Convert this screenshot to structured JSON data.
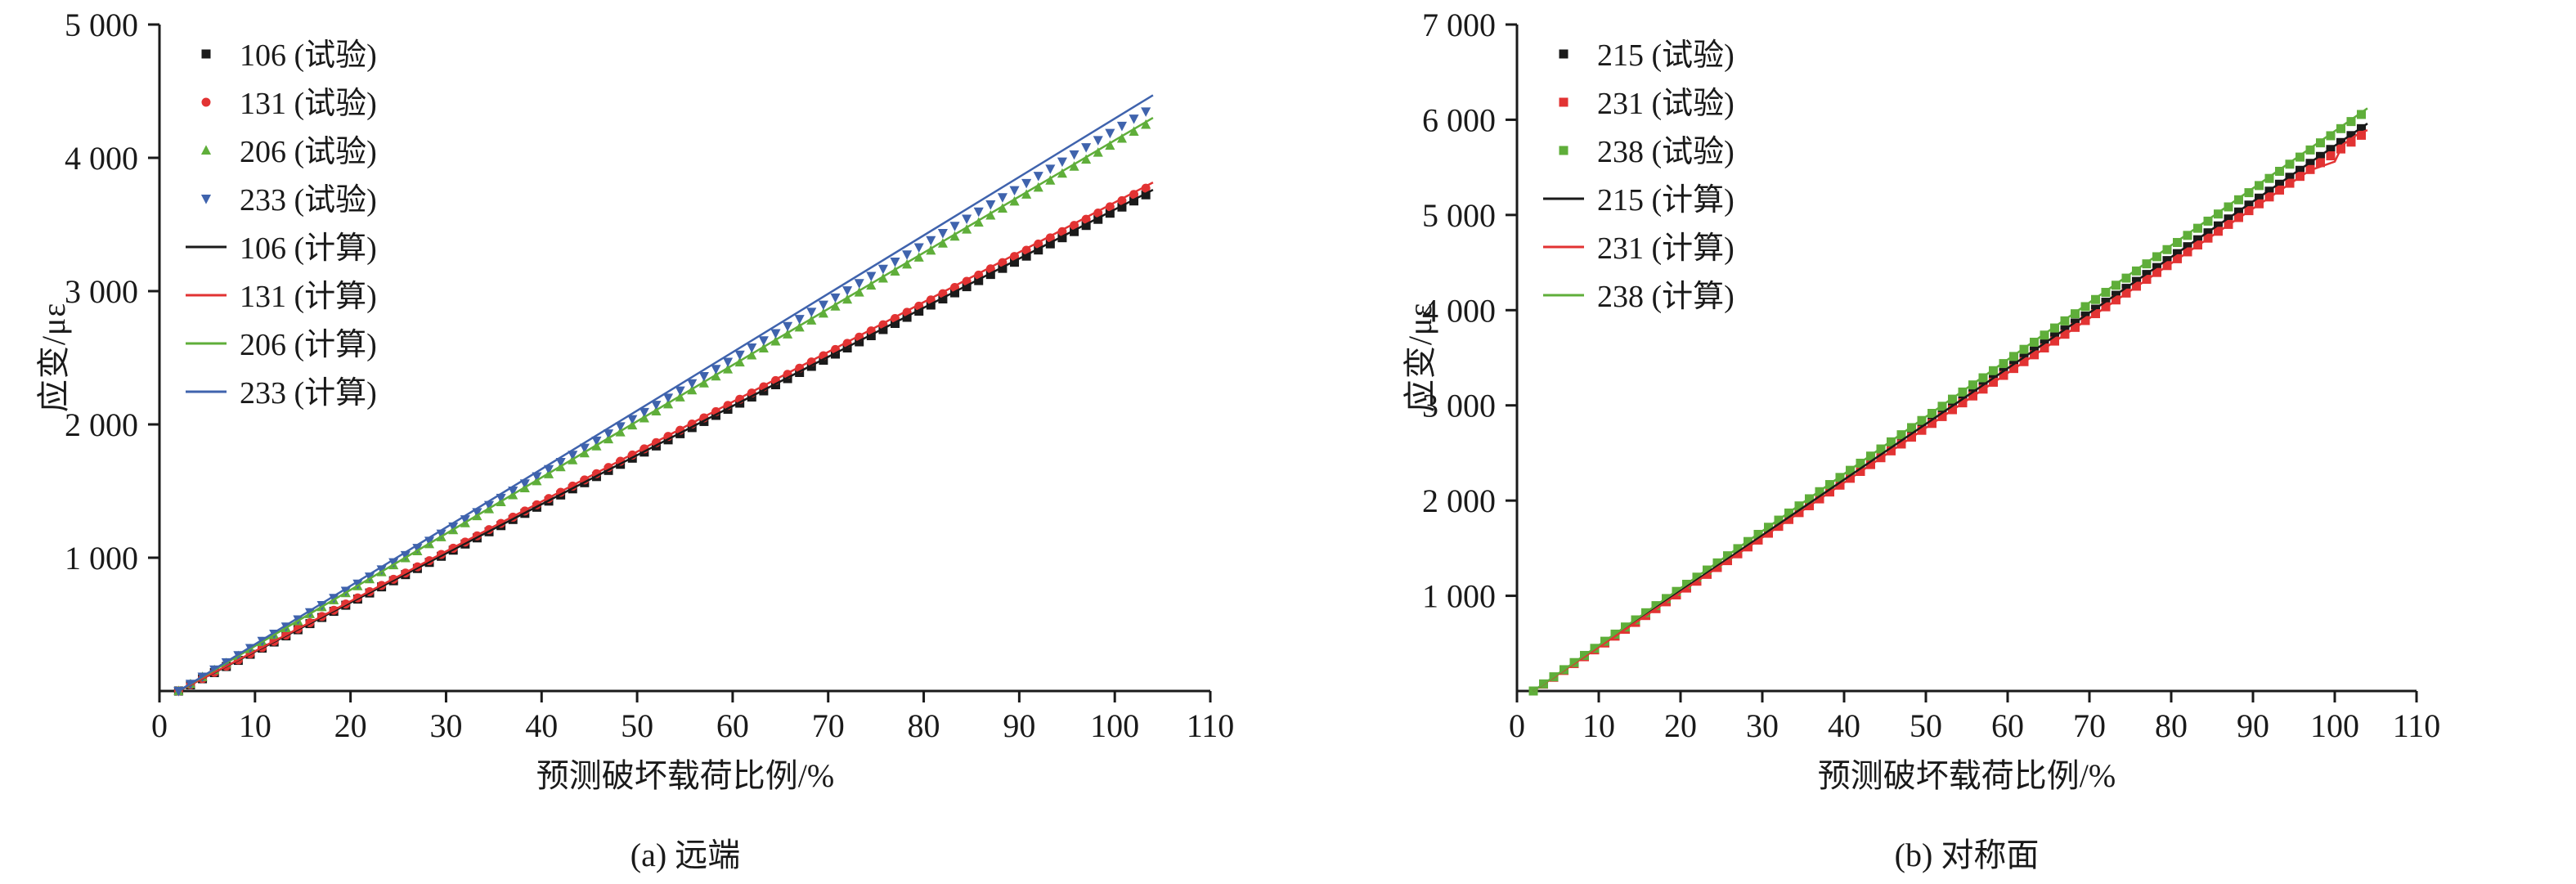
{
  "colors": {
    "black": "#1a1a1a",
    "red": "#e23333",
    "green": "#5fae3a",
    "blue": "#3f63ad",
    "background": "#ffffff"
  },
  "chart_data": [
    {
      "id": "a",
      "type": "scatter",
      "caption": "(a) 远端",
      "xlabel": "预测破坏载荷比例/%",
      "ylabel": "应变/με",
      "xlim": [
        0,
        110
      ],
      "ylim": [
        0,
        5000
      ],
      "xticks": [
        0,
        10,
        20,
        30,
        40,
        50,
        60,
        70,
        80,
        90,
        100,
        110
      ],
      "yticks": [
        1000,
        2000,
        3000,
        4000,
        5000
      ],
      "grid": false,
      "legend_position": "top-left",
      "series": [
        {
          "name": "106 (试验)",
          "kind": "scatter",
          "marker": "square",
          "color": "#1a1a1a",
          "x": [
            2,
            10,
            20,
            30,
            40,
            50,
            60,
            70,
            80,
            90,
            100,
            104
          ],
          "y": [
            0,
            294,
            662,
            1029,
            1397,
            1765,
            2132,
            2500,
            2868,
            3235,
            3603,
            3750
          ]
        },
        {
          "name": "131 (试验)",
          "kind": "scatter",
          "marker": "circle",
          "color": "#e23333",
          "x": [
            2,
            10,
            20,
            30,
            40,
            50,
            60,
            70,
            80,
            90,
            100,
            104
          ],
          "y": [
            0,
            298,
            671,
            1043,
            1416,
            1789,
            2161,
            2534,
            2906,
            3279,
            3651,
            3800
          ]
        },
        {
          "name": "206 (试验)",
          "kind": "scatter",
          "marker": "triangle-up",
          "color": "#5fae3a",
          "x": [
            2,
            10,
            20,
            30,
            40,
            50,
            60,
            70,
            80,
            90,
            100,
            104
          ],
          "y": [
            0,
            336,
            755,
            1175,
            1595,
            2014,
            2434,
            2853,
            3273,
            3693,
            4112,
            4280
          ]
        },
        {
          "name": "233 (试验)",
          "kind": "scatter",
          "marker": "triangle-down",
          "color": "#3f63ad",
          "x": [
            2,
            10,
            20,
            30,
            40,
            50,
            60,
            70,
            80,
            90,
            100,
            104
          ],
          "y": [
            0,
            344,
            773,
            1202,
            1632,
            2061,
            2491,
            2920,
            3350,
            3779,
            4208,
            4380
          ]
        },
        {
          "name": "106 (计算)",
          "kind": "line",
          "color": "#1a1a1a",
          "x": [
            2,
            104
          ],
          "y": [
            0,
            3760
          ]
        },
        {
          "name": "131 (计算)",
          "kind": "line",
          "color": "#e23333",
          "x": [
            2,
            104
          ],
          "y": [
            0,
            3815
          ]
        },
        {
          "name": "206 (计算)",
          "kind": "line",
          "color": "#5fae3a",
          "x": [
            2,
            104
          ],
          "y": [
            0,
            4300
          ]
        },
        {
          "name": "233 (计算)",
          "kind": "line",
          "color": "#3f63ad",
          "x": [
            2,
            104
          ],
          "y": [
            0,
            4470
          ]
        }
      ]
    },
    {
      "id": "b",
      "type": "scatter",
      "caption": "(b) 对称面",
      "xlabel": "预测破坏载荷比例/%",
      "ylabel": "应变/με",
      "xlim": [
        0,
        110
      ],
      "ylim": [
        0,
        7000
      ],
      "xticks": [
        0,
        10,
        20,
        30,
        40,
        50,
        60,
        70,
        80,
        90,
        100,
        110
      ],
      "yticks": [
        1000,
        2000,
        3000,
        4000,
        5000,
        6000,
        7000
      ],
      "grid": false,
      "legend_position": "top-left",
      "series": [
        {
          "name": "215 (试验)",
          "kind": "scatter",
          "marker": "square",
          "color": "#1a1a1a",
          "x": [
            2,
            10,
            20,
            30,
            40,
            50,
            60,
            70,
            80,
            90,
            100,
            104
          ],
          "y": [
            0,
            467,
            1050,
            1633,
            2217,
            2800,
            3383,
            3967,
            4550,
            5133,
            5717,
            5950
          ]
        },
        {
          "name": "231 (试验)",
          "kind": "scatter",
          "marker": "square",
          "color": "#e23333",
          "x": [
            2,
            10,
            20,
            30,
            40,
            50,
            60,
            70,
            80,
            90,
            100,
            104
          ],
          "y": [
            0,
            461,
            1038,
            1614,
            2191,
            2767,
            3344,
            3920,
            4497,
            5074,
            5650,
            5880
          ]
        },
        {
          "name": "238 (试验)",
          "kind": "scatter",
          "marker": "square",
          "color": "#5fae3a",
          "x": [
            2,
            10,
            20,
            30,
            40,
            50,
            60,
            70,
            80,
            90,
            100,
            104
          ],
          "y": [
            0,
            478,
            1076,
            1675,
            2273,
            2871,
            3469,
            4067,
            4666,
            5264,
            5862,
            6100
          ]
        },
        {
          "name": "215 (计算)",
          "kind": "line",
          "color": "#1a1a1a",
          "x": [
            2,
            104
          ],
          "y": [
            0,
            5960
          ]
        },
        {
          "name": "231 (计算)",
          "kind": "line",
          "color": "#e23333",
          "x": [
            2,
            97,
            100,
            101,
            103,
            104
          ],
          "y": [
            0,
            5470,
            5560,
            5740,
            5860,
            5890
          ]
        },
        {
          "name": "238 (计算)",
          "kind": "line",
          "color": "#5fae3a",
          "x": [
            2,
            104
          ],
          "y": [
            0,
            6120
          ]
        }
      ]
    }
  ]
}
